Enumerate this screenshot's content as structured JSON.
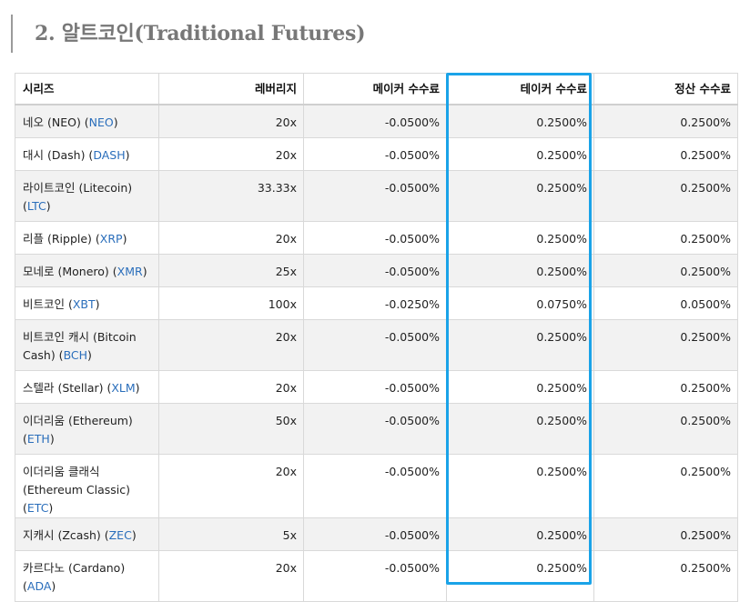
{
  "heading": "2. 알트코인(Traditional Futures)",
  "table": {
    "headers": {
      "series": "시리즈",
      "leverage": "레버리지",
      "maker_fee": "메이커 수수료",
      "taker_fee": "테이커 수수료",
      "settlement_fee": "정산 수수료"
    },
    "rows": [
      {
        "name": "네오 (NEO) (",
        "code": "NEO",
        "close": ")",
        "leverage": "20x",
        "maker": "-0.0500%",
        "taker": "0.2500%",
        "settle": "0.2500%",
        "tall": false
      },
      {
        "name": "대시 (Dash) (",
        "code": "DASH",
        "close": ")",
        "leverage": "20x",
        "maker": "-0.0500%",
        "taker": "0.2500%",
        "settle": "0.2500%",
        "tall": false
      },
      {
        "name": "라이트코인 (Litecoin) (",
        "code": "LTC",
        "close": ")",
        "leverage": "33.33x",
        "maker": "-0.0500%",
        "taker": "0.2500%",
        "settle": "0.2500%",
        "tall": true
      },
      {
        "name": "리플 (Ripple) (",
        "code": "XRP",
        "close": ")",
        "leverage": "20x",
        "maker": "-0.0500%",
        "taker": "0.2500%",
        "settle": "0.2500%",
        "tall": false
      },
      {
        "name": "모네로 (Monero) (",
        "code": "XMR",
        "close": ")",
        "leverage": "25x",
        "maker": "-0.0500%",
        "taker": "0.2500%",
        "settle": "0.2500%",
        "tall": false
      },
      {
        "name": "비트코인 (",
        "code": "XBT",
        "close": ")",
        "leverage": "100x",
        "maker": "-0.0250%",
        "taker": "0.0750%",
        "settle": "0.0500%",
        "tall": false
      },
      {
        "name": "비트코인 캐시 (Bitcoin Cash) (",
        "code": "BCH",
        "close": ")",
        "leverage": "20x",
        "maker": "-0.0500%",
        "taker": "0.2500%",
        "settle": "0.2500%",
        "tall": true
      },
      {
        "name": "스텔라 (Stellar) (",
        "code": "XLM",
        "close": ")",
        "leverage": "20x",
        "maker": "-0.0500%",
        "taker": "0.2500%",
        "settle": "0.2500%",
        "tall": false
      },
      {
        "name": "이더리움 (Ethereum) (",
        "code": "ETH",
        "close": ")",
        "leverage": "50x",
        "maker": "-0.0500%",
        "taker": "0.2500%",
        "settle": "0.2500%",
        "tall": true
      },
      {
        "name": "이더리움 클래식 (Ethereum Classic) (",
        "code": "ETC",
        "close": ")",
        "leverage": "20x",
        "maker": "-0.0500%",
        "taker": "0.2500%",
        "settle": "0.2500%",
        "tall": true
      },
      {
        "name": "지캐시 (Zcash) (",
        "code": "ZEC",
        "close": ")",
        "leverage": "5x",
        "maker": "-0.0500%",
        "taker": "0.2500%",
        "settle": "0.2500%",
        "tall": false
      },
      {
        "name": "카르다노 (Cardano) (",
        "code": "ADA",
        "close": ")",
        "leverage": "20x",
        "maker": "-0.0500%",
        "taker": "0.2500%",
        "settle": "0.2500%",
        "tall": true
      }
    ]
  },
  "colors": {
    "highlight_box": "#1aa3e8",
    "code_link": "#2a6ebb",
    "row_stripe": "#f2f2f2"
  }
}
